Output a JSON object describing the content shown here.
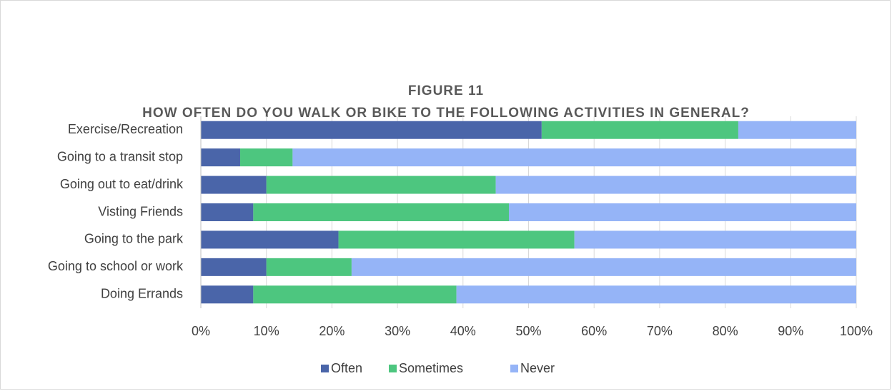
{
  "chart_data": {
    "type": "stacked_barh",
    "title": "FIGURE 11",
    "subtitle": "HOW OFTEN DO YOU WALK OR BIKE TO THE FOLLOWING ACTIVITIES IN GENERAL?",
    "categories": [
      "Exercise/Recreation",
      "Going to a transit stop",
      "Going out to eat/drink",
      "Visting Friends",
      "Going to the park",
      "Going to school or work",
      "Doing Errands"
    ],
    "series": [
      {
        "name": "Often",
        "color": "#4a65a9",
        "values": [
          52,
          6,
          10,
          8,
          21,
          10,
          8
        ]
      },
      {
        "name": "Sometimes",
        "color": "#4dc67f",
        "values": [
          30,
          8,
          35,
          39,
          36,
          13,
          31
        ]
      },
      {
        "name": "Never",
        "color": "#95b4f7",
        "values": [
          18,
          86,
          55,
          53,
          43,
          77,
          61
        ]
      }
    ],
    "xlim": [
      0,
      100
    ],
    "xticks": [
      {
        "value": 0,
        "label": "0%"
      },
      {
        "value": 10,
        "label": "10%"
      },
      {
        "value": 20,
        "label": "20%"
      },
      {
        "value": 30,
        "label": "30%"
      },
      {
        "value": 40,
        "label": "40%"
      },
      {
        "value": 50,
        "label": "50%"
      },
      {
        "value": 60,
        "label": "60%"
      },
      {
        "value": 70,
        "label": "70%"
      },
      {
        "value": 80,
        "label": "80%"
      },
      {
        "value": 90,
        "label": "90%"
      },
      {
        "value": 100,
        "label": "100%"
      }
    ],
    "grid": true,
    "legend": "bottom"
  }
}
